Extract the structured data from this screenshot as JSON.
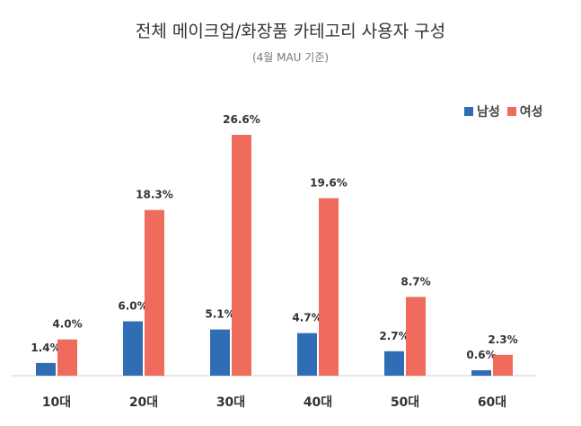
{
  "chart_data": {
    "type": "bar",
    "title": "전체 메이크업/화장품 카테고리 사용자 구성",
    "subtitle": "(4월 MAU 기준)",
    "categories": [
      "10대",
      "20대",
      "30대",
      "40대",
      "50대",
      "60대"
    ],
    "series": [
      {
        "name": "남성",
        "color": "#2f6db5",
        "values": [
          1.4,
          6.0,
          5.1,
          4.7,
          2.7,
          0.6
        ],
        "labels": [
          "1.4%",
          "6.0%",
          "5.1%",
          "4.7%",
          "2.7%",
          "0.6%"
        ]
      },
      {
        "name": "여성",
        "color": "#ef6b5b",
        "values": [
          4.0,
          18.3,
          26.6,
          19.6,
          8.7,
          2.3
        ],
        "labels": [
          "4.0%",
          "18.3%",
          "26.6%",
          "19.6%",
          "8.7%",
          "2.3%"
        ]
      }
    ],
    "ylim": [
      0,
      26.6
    ],
    "legend_position": "top-right",
    "grid": false
  }
}
